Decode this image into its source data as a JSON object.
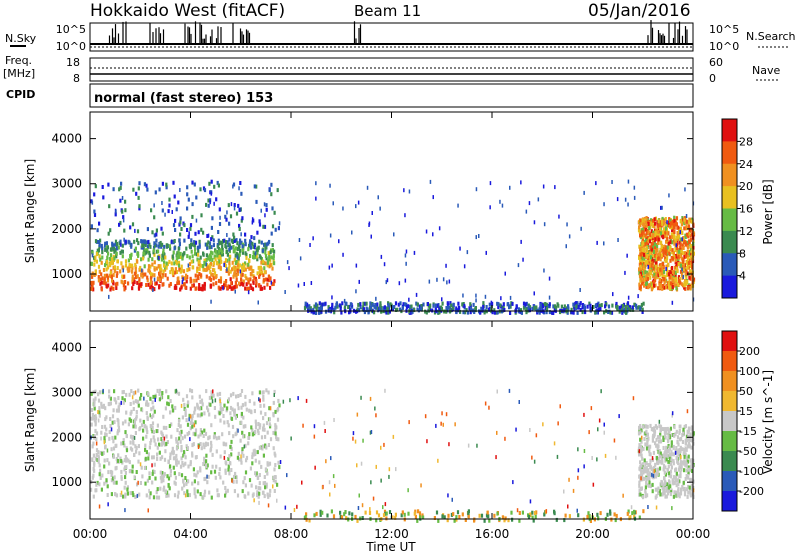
{
  "header": {
    "title": "Hokkaido West (fitACF)",
    "beam": "Beam 11",
    "date": "05/Jan/2016"
  },
  "top_panels": {
    "nsky_label": "N.Sky",
    "nsky_ticks": [
      "10^5",
      "10^0"
    ],
    "nsearch_label": "N.Search",
    "nsearch_ticks": [
      "10^5",
      "10^0"
    ],
    "freq_label": "Freq.",
    "freq_unit": "[MHz]",
    "freq_ticks": [
      "18",
      "8"
    ],
    "nave_label": "Nave",
    "nave_ticks": [
      "60",
      "0"
    ],
    "cpid_label": "CPID",
    "cpid_text": "normal (fast stereo) 153"
  },
  "colors": {
    "power": [
      "#1a1adc",
      "#2a5ab8",
      "#3a8a50",
      "#66bb44",
      "#e8c020",
      "#f09020",
      "#f05a10",
      "#e01010"
    ],
    "velocity": [
      "#1a1adc",
      "#2a5ab8",
      "#3a8a50",
      "#66bb44",
      "#c8c8c8",
      "#f0b830",
      "#f09020",
      "#f05a10",
      "#e01010"
    ]
  },
  "chart_data": [
    {
      "type": "heatmap",
      "ylabel": "Slant Range [km]",
      "xlabel": "Time UT",
      "x_ticks": [
        "00:00",
        "04:00",
        "08:00",
        "12:00",
        "16:00",
        "20:00",
        "00:00"
      ],
      "y_ticks": [
        "1000",
        "2000",
        "3000",
        "4000"
      ],
      "xlim": [
        0,
        24
      ],
      "ylim": [
        180,
        4590
      ],
      "colorbar": {
        "label": "Power [dB]",
        "ticks": [
          "4",
          "8",
          "12",
          "16",
          "20",
          "24",
          "28"
        ],
        "range": [
          0,
          30
        ]
      },
      "echo_regions": [
        {
          "t_start": 0.0,
          "t_end": 7.3,
          "r_low": 700,
          "r_high": 1800,
          "peak": "~24-30 dB"
        },
        {
          "t_start": 0.0,
          "t_end": 7.5,
          "r_low": 1800,
          "r_high": 3100,
          "peak": "~4-12 dB"
        },
        {
          "t_start": 8.5,
          "t_end": 22.0,
          "r_low": 180,
          "r_high": 400,
          "peak": "~4-16 dB"
        },
        {
          "t_start": 21.8,
          "t_end": 24.0,
          "r_low": 700,
          "r_high": 2300,
          "peak": "~20-28 dB"
        }
      ]
    },
    {
      "type": "heatmap",
      "ylabel": "Slant Range [km]",
      "xlabel": "Time UT",
      "x_ticks": [
        "00:00",
        "04:00",
        "08:00",
        "12:00",
        "16:00",
        "20:00",
        "00:00"
      ],
      "y_ticks": [
        "1000",
        "2000",
        "3000",
        "4000"
      ],
      "xlim": [
        0,
        24
      ],
      "ylim": [
        180,
        4590
      ],
      "colorbar": {
        "label": "Velocity [m s^-1]",
        "ticks": [
          "200",
          "100",
          "50",
          "15",
          "-15",
          "-50",
          "-100",
          "-200"
        ],
        "range": [
          -250,
          250
        ]
      },
      "echo_regions": [
        {
          "t_start": 0.0,
          "t_end": 7.5,
          "r_low": 700,
          "r_high": 3100,
          "velocity": "~ -15 to 15 (ground scatter)"
        },
        {
          "t_start": 8.5,
          "t_end": 22.0,
          "r_low": 180,
          "r_high": 400,
          "velocity": "~ -50 to 50"
        },
        {
          "t_start": 21.8,
          "t_end": 24.0,
          "r_low": 700,
          "r_high": 2300,
          "velocity": "~ -15 to 15"
        }
      ]
    }
  ]
}
